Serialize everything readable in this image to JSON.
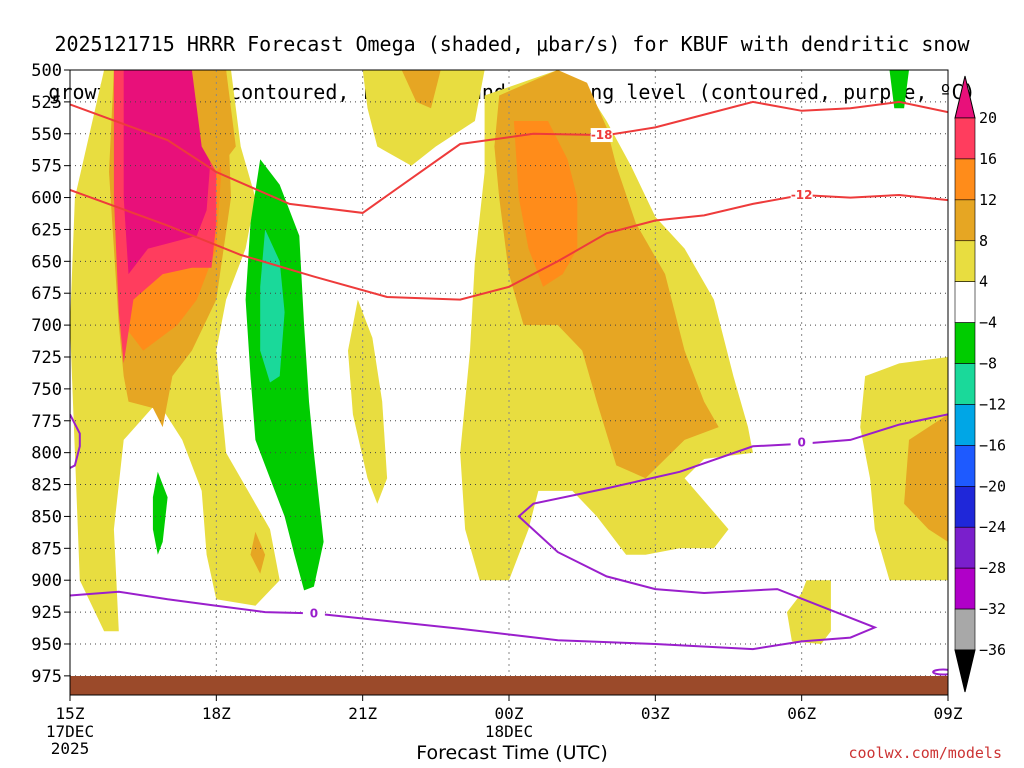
{
  "chart_data": {
    "type": "heatmap",
    "title_line1": "2025121715 HRRR Forecast Omega (shaded, μbar/s) for KBUF with dendritic snow",
    "title_line2": "growth region (contoured, red, ºC) and freezing level (contoured, purple, ºC)",
    "xlabel": "Forecast Time (UTC)",
    "x_hours": [
      0,
      3,
      6,
      9,
      12,
      15,
      18
    ],
    "x_tick_labels": [
      "15Z",
      "18Z",
      "21Z",
      "00Z",
      "03Z",
      "06Z",
      "09Z"
    ],
    "x_sub_labels": [
      {
        "hour": 0,
        "lines": [
          "17DEC",
          "2025"
        ]
      },
      {
        "hour": 9,
        "lines": [
          "18DEC"
        ]
      }
    ],
    "xlim": [
      0,
      18
    ],
    "y_levels": [
      500,
      525,
      550,
      575,
      600,
      625,
      650,
      675,
      700,
      725,
      750,
      775,
      800,
      825,
      850,
      875,
      900,
      925,
      950,
      975
    ],
    "ylim": [
      500,
      990
    ],
    "colorbar": {
      "ticks": [
        "20",
        "16",
        "12",
        "8",
        "4",
        "−4",
        "−8",
        "−12",
        "−16",
        "−20",
        "−24",
        "−28",
        "−32",
        "−36"
      ],
      "colors": [
        "#ff3d5e",
        "#ff8c1a",
        "#e6a623",
        "#e8dd40",
        "#ffffff",
        "#00cc00",
        "#1ad99a",
        "#00a6e6",
        "#1e5aff",
        "#1f27d9",
        "#7a1fcc",
        "#b000c8",
        "#a8a8a8"
      ],
      "top_color": "#e8107a",
      "bottom_color": "#000000"
    },
    "contours": [
      {
        "label": "-18",
        "color": "#ee3b3b",
        "label_hour": 10.9,
        "label_level": 551,
        "points": [
          [
            0,
            527
          ],
          [
            2,
            555
          ],
          [
            3,
            580
          ],
          [
            4.5,
            605
          ],
          [
            6,
            612
          ],
          [
            7,
            585
          ],
          [
            8,
            558
          ],
          [
            9.5,
            550
          ],
          [
            11,
            551
          ],
          [
            12,
            545
          ],
          [
            13,
            535
          ],
          [
            14,
            525
          ],
          [
            15,
            532
          ],
          [
            16,
            530
          ],
          [
            17,
            525
          ],
          [
            18,
            533
          ]
        ]
      },
      {
        "label": "-12",
        "color": "#ee3b3b",
        "label_hour": 15,
        "label_level": 598,
        "points": [
          [
            0,
            594
          ],
          [
            2,
            622
          ],
          [
            3.5,
            645
          ],
          [
            5,
            662
          ],
          [
            6.5,
            678
          ],
          [
            8,
            680
          ],
          [
            9,
            670
          ],
          [
            10,
            650
          ],
          [
            11,
            628
          ],
          [
            12,
            618
          ],
          [
            13,
            614
          ],
          [
            14,
            605
          ],
          [
            15,
            598
          ],
          [
            16,
            600
          ],
          [
            17,
            598
          ],
          [
            18,
            602
          ]
        ]
      },
      {
        "label": "0",
        "color": "#9a1fcc",
        "label_hour": 5,
        "label_level": 926,
        "points": [
          [
            0,
            912
          ],
          [
            1,
            909
          ],
          [
            2,
            915
          ],
          [
            3,
            920
          ],
          [
            4,
            925
          ],
          [
            5,
            926
          ],
          [
            6,
            930
          ],
          [
            8,
            938
          ],
          [
            10,
            947
          ],
          [
            12,
            950
          ],
          [
            14,
            954
          ],
          [
            15,
            948
          ],
          [
            16,
            945
          ],
          [
            16.5,
            937
          ],
          [
            15.5,
            922
          ],
          [
            14.5,
            907
          ],
          [
            13,
            910
          ],
          [
            12,
            907
          ],
          [
            11,
            897
          ],
          [
            10,
            878
          ],
          [
            9.2,
            850
          ],
          [
            9.5,
            840
          ],
          [
            11,
            828
          ],
          [
            12.5,
            815
          ],
          [
            14,
            795
          ],
          [
            15,
            793
          ],
          [
            16,
            790
          ],
          [
            17,
            778
          ],
          [
            18,
            770
          ]
        ]
      },
      {
        "label": "0",
        "color": "#9a1fcc",
        "label_hour": 15,
        "label_level": 792,
        "points": []
      }
    ],
    "freezing_stub": [
      [
        0,
        770
      ],
      [
        0.2,
        785
      ],
      [
        0.2,
        795
      ],
      [
        0.1,
        810
      ],
      [
        0,
        812
      ]
    ]
  },
  "credit": "coolwx.com/models"
}
